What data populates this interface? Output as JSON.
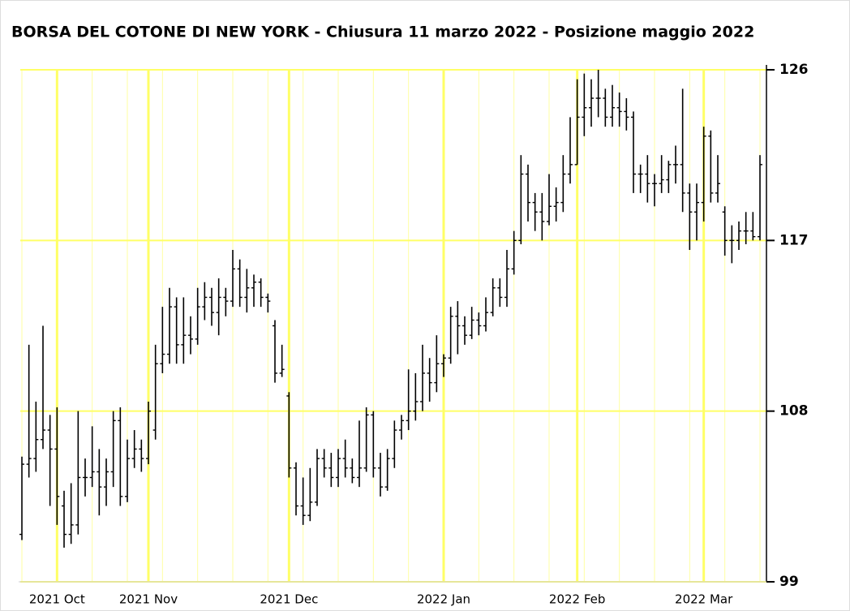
{
  "chart_data": {
    "type": "ohlc",
    "title": "BORSA DEL COTONE DI NEW YORK - Chiusura 11 marzo 2022 - Posizione maggio 2022",
    "color": "#000000",
    "grid_color": "#ffff66",
    "grid": true,
    "xlim": [
      0,
      105
    ],
    "xticks": [
      {
        "value": 5,
        "label": "2021 Oct"
      },
      {
        "value": 18,
        "label": "2021 Nov"
      },
      {
        "value": 38,
        "label": "2021 Dec"
      },
      {
        "value": 60,
        "label": "2022 Jan"
      },
      {
        "value": 79,
        "label": "2022 Feb"
      },
      {
        "value": 97,
        "label": "2022 Mar"
      }
    ],
    "ylim": [
      99,
      126
    ],
    "yticks": [
      99,
      108,
      117,
      126
    ],
    "open": [
      101.5,
      105.2,
      105.5,
      106.5,
      107,
      106,
      103,
      101.5,
      102,
      104.5,
      104.5,
      104.8,
      104,
      104.8,
      107.5,
      103.5,
      105.5,
      106,
      105.5,
      107,
      110.5,
      111,
      113.5,
      111.5,
      112,
      111.8,
      113.5,
      114,
      113.2,
      114,
      113.8,
      115.5,
      114,
      114.5,
      114.8,
      114,
      112.5,
      110,
      108.8,
      105,
      103,
      102.5,
      103.2,
      105.5,
      105,
      104.5,
      105.5,
      105,
      104.5,
      105,
      107.8,
      105,
      104,
      105.5,
      107,
      107.5,
      108,
      108.5,
      110,
      109.5,
      110.5,
      110.8,
      113,
      112.5,
      112,
      112.8,
      112.5,
      113.2,
      114.5,
      114,
      115.5,
      117,
      120.5,
      119,
      118.5,
      118,
      118.8,
      119,
      120.5,
      121,
      123.5,
      124,
      124.5,
      124.5,
      123.5,
      124,
      123.8,
      123.5,
      120.5,
      120.5,
      120,
      120,
      120.2,
      121,
      121,
      119.5,
      118.5,
      119,
      122.5,
      119.5,
      118.5,
      117,
      117,
      117.5,
      117.5,
      117.2
    ],
    "high": [
      105.6,
      111.5,
      108.5,
      112.5,
      107.8,
      108.2,
      103.8,
      104.2,
      108,
      105.5,
      107.2,
      106,
      105.5,
      108,
      108.2,
      106.5,
      107,
      106.5,
      108.5,
      111.5,
      113.5,
      114.5,
      114,
      114,
      113,
      114.5,
      114.8,
      114.5,
      115,
      114.5,
      116.5,
      116,
      115.5,
      115.2,
      115,
      114.2,
      112.8,
      111.5,
      109,
      105.3,
      104.5,
      105,
      106,
      106,
      105.8,
      106,
      106.5,
      105.5,
      107.5,
      108.2,
      108,
      105.8,
      106,
      107.5,
      107.8,
      110.2,
      110,
      111.5,
      110.8,
      112,
      111,
      113.5,
      113.8,
      113,
      113.5,
      113.2,
      114,
      115,
      115,
      116.5,
      117.5,
      121.5,
      121,
      119.5,
      119.5,
      120.5,
      119.8,
      121.5,
      123.5,
      125.5,
      125.8,
      125.5,
      126,
      125,
      125.2,
      124.8,
      124.5,
      123.8,
      121,
      121.5,
      120.5,
      121.5,
      121.2,
      122,
      125,
      120,
      120,
      123,
      122.8,
      121.5,
      118.8,
      117.8,
      118,
      118.5,
      118.5,
      121.5
    ],
    "low": [
      101.2,
      104.5,
      104.8,
      106,
      103,
      102,
      100.8,
      101,
      101.5,
      103.5,
      104,
      102.5,
      103,
      104,
      103,
      103.2,
      105,
      104.8,
      105.2,
      106.5,
      110,
      110.5,
      110.5,
      110.5,
      111,
      111.5,
      112.8,
      112.5,
      112,
      113,
      113.5,
      113.5,
      113.2,
      113.5,
      113.5,
      113.2,
      109.5,
      109.8,
      104.5,
      102.5,
      102,
      102.2,
      103,
      104.5,
      104,
      104,
      104.5,
      104.2,
      104,
      104.8,
      104.5,
      103.5,
      103.8,
      105,
      106.5,
      107,
      107.5,
      108,
      108.5,
      109,
      109.8,
      110.5,
      111,
      111.5,
      111.8,
      112,
      112.2,
      113,
      113.5,
      113.5,
      115.2,
      116.8,
      118,
      117.5,
      117,
      117.8,
      118,
      118.5,
      120,
      121,
      122.5,
      123,
      123.5,
      123,
      123,
      123,
      122.8,
      119.5,
      119.5,
      119,
      118.8,
      119.5,
      119.5,
      120,
      118.5,
      116.5,
      117,
      118,
      119,
      119,
      116.2,
      115.8,
      116.5,
      116.8,
      117,
      117
    ],
    "close": [
      105.2,
      105.5,
      106.5,
      107,
      106,
      103.5,
      101.5,
      102,
      104.5,
      104.5,
      104.8,
      104,
      104.8,
      107.5,
      103.5,
      105.5,
      106,
      105.5,
      108,
      110.5,
      111,
      113.5,
      111.5,
      112,
      111.8,
      113.5,
      114,
      113.2,
      114,
      113.8,
      115.5,
      114,
      114.5,
      114.8,
      114,
      113.8,
      110,
      110.2,
      105,
      103,
      102.5,
      103.2,
      105.5,
      105,
      104.5,
      105.5,
      105,
      104.5,
      105,
      107.8,
      105,
      104,
      105.5,
      107,
      107.5,
      108,
      108.5,
      110,
      109.5,
      110.5,
      110.8,
      113,
      112.5,
      112,
      112.8,
      112.5,
      113.2,
      114.5,
      114,
      115.5,
      117,
      120.5,
      119,
      118.5,
      118,
      118.8,
      119,
      120.5,
      121,
      123.5,
      124,
      124.5,
      124.5,
      123.5,
      124,
      123.8,
      123.5,
      120.5,
      120.5,
      120,
      120,
      120.2,
      121,
      121,
      119.5,
      118.5,
      119,
      122.5,
      119.5,
      120,
      117,
      117,
      117.5,
      117.5,
      117.2,
      121
    ]
  }
}
